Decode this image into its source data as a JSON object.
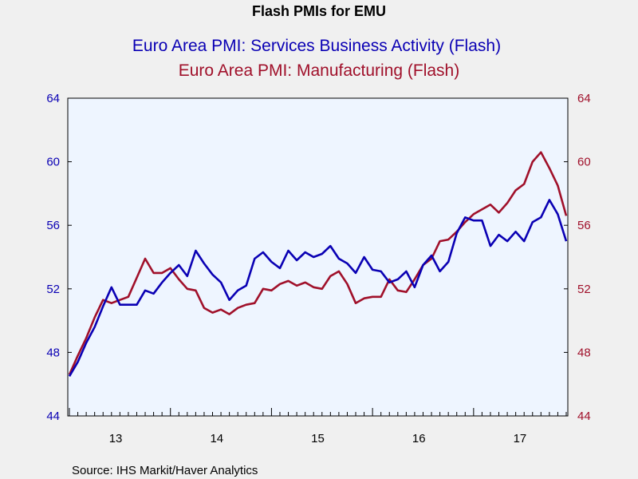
{
  "chart_data": {
    "type": "line",
    "title": "Flash PMIs for EMU",
    "series": [
      {
        "name": "Euro Area PMI: Services Business Activity (Flash)",
        "axis": "left",
        "color": "#0a00b4",
        "values": [
          46.5,
          47.4,
          48.6,
          49.6,
          50.9,
          52.1,
          51.0,
          51.0,
          51.0,
          51.9,
          51.7,
          52.4,
          53.0,
          53.5,
          52.8,
          54.4,
          53.6,
          52.9,
          52.4,
          51.3,
          51.9,
          52.2,
          53.9,
          54.3,
          53.7,
          53.3,
          54.4,
          53.8,
          54.3,
          54.0,
          54.2,
          54.7,
          53.9,
          53.6,
          53.0,
          54.0,
          53.2,
          53.1,
          52.4,
          52.6,
          53.1,
          52.1,
          53.5,
          54.1,
          53.1,
          53.7,
          55.5,
          56.5,
          56.3,
          56.3,
          54.7,
          55.4,
          55.0,
          55.6,
          55.0,
          56.2,
          56.5,
          57.6,
          56.7,
          55.0
        ]
      },
      {
        "name": "Euro Area PMI: Manufacturing (Flash)",
        "axis": "right",
        "color": "#a0102a",
        "values": [
          46.6,
          47.8,
          48.9,
          50.2,
          51.3,
          51.1,
          51.3,
          51.5,
          52.7,
          53.9,
          53.0,
          53.0,
          53.3,
          52.6,
          52.0,
          51.9,
          50.8,
          50.5,
          50.7,
          50.4,
          50.8,
          51.0,
          51.1,
          52.0,
          51.9,
          52.3,
          52.5,
          52.2,
          52.4,
          52.1,
          52.0,
          52.8,
          53.1,
          52.3,
          51.1,
          51.4,
          51.5,
          51.5,
          52.6,
          51.9,
          51.8,
          52.6,
          53.5,
          53.9,
          55.0,
          55.1,
          55.6,
          56.2,
          56.7,
          57.0,
          57.3,
          56.8,
          57.4,
          58.2,
          58.6,
          60.0,
          60.6,
          59.6,
          58.5,
          56.6
        ]
      }
    ],
    "x_start": "2013-01",
    "x_frequency": "monthly",
    "x_tick_labels": [
      "13",
      "14",
      "15",
      "16",
      "17"
    ],
    "y_left": {
      "range": [
        44,
        64
      ],
      "ticks": [
        44,
        48,
        52,
        56,
        60,
        64
      ],
      "color": "#0a00b4"
    },
    "y_right": {
      "range": [
        44,
        64
      ],
      "ticks": [
        44,
        48,
        52,
        56,
        60,
        64
      ],
      "color": "#a0102a"
    },
    "grid": false,
    "legend": "top-center (as subtitles)",
    "plot_background": "#eef5ff",
    "source": "Source:  IHS Markit/Haver Analytics"
  }
}
